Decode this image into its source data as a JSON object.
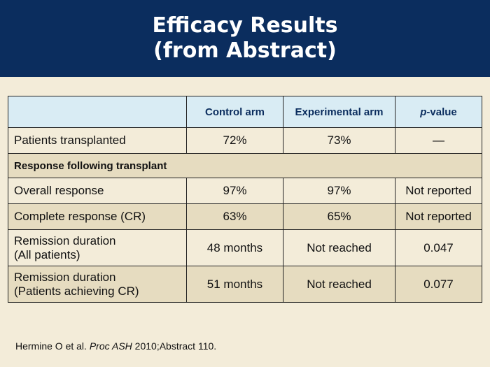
{
  "header": {
    "title_line1": "Efficacy Results",
    "title_line2": "(from Abstract)"
  },
  "table": {
    "columns": [
      "",
      "Control arm",
      "Experimental arm",
      "p",
      "-value"
    ],
    "rows": [
      {
        "label": "Patients transplanted",
        "control": "72%",
        "experimental": "73%",
        "p": "—"
      },
      {
        "section": "Response following transplant"
      },
      {
        "label": "Overall response",
        "control": "97%",
        "experimental": "97%",
        "p": "Not reported"
      },
      {
        "label": "Complete response (CR)",
        "control": "63%",
        "experimental": "65%",
        "p": "Not reported"
      },
      {
        "label_line1": "Remission duration",
        "label_line2": "(All patients)",
        "control": "48 months",
        "experimental": "Not reached",
        "p": "0.047"
      },
      {
        "label_line1": "Remission duration",
        "label_line2": "(Patients achieving CR)",
        "control": "51 months",
        "experimental": "Not reached",
        "p": "0.077"
      }
    ]
  },
  "footer": {
    "authors": "Hermine O et al. ",
    "journal": "Proc ASH",
    "rest": " 2010;Abstract 110."
  },
  "colors": {
    "header_bg": "#0b2d5e",
    "page_bg": "#f3ecd9",
    "header_row_bg": "#d9ecf4",
    "alt_row_bg": "#e6dcc0"
  }
}
